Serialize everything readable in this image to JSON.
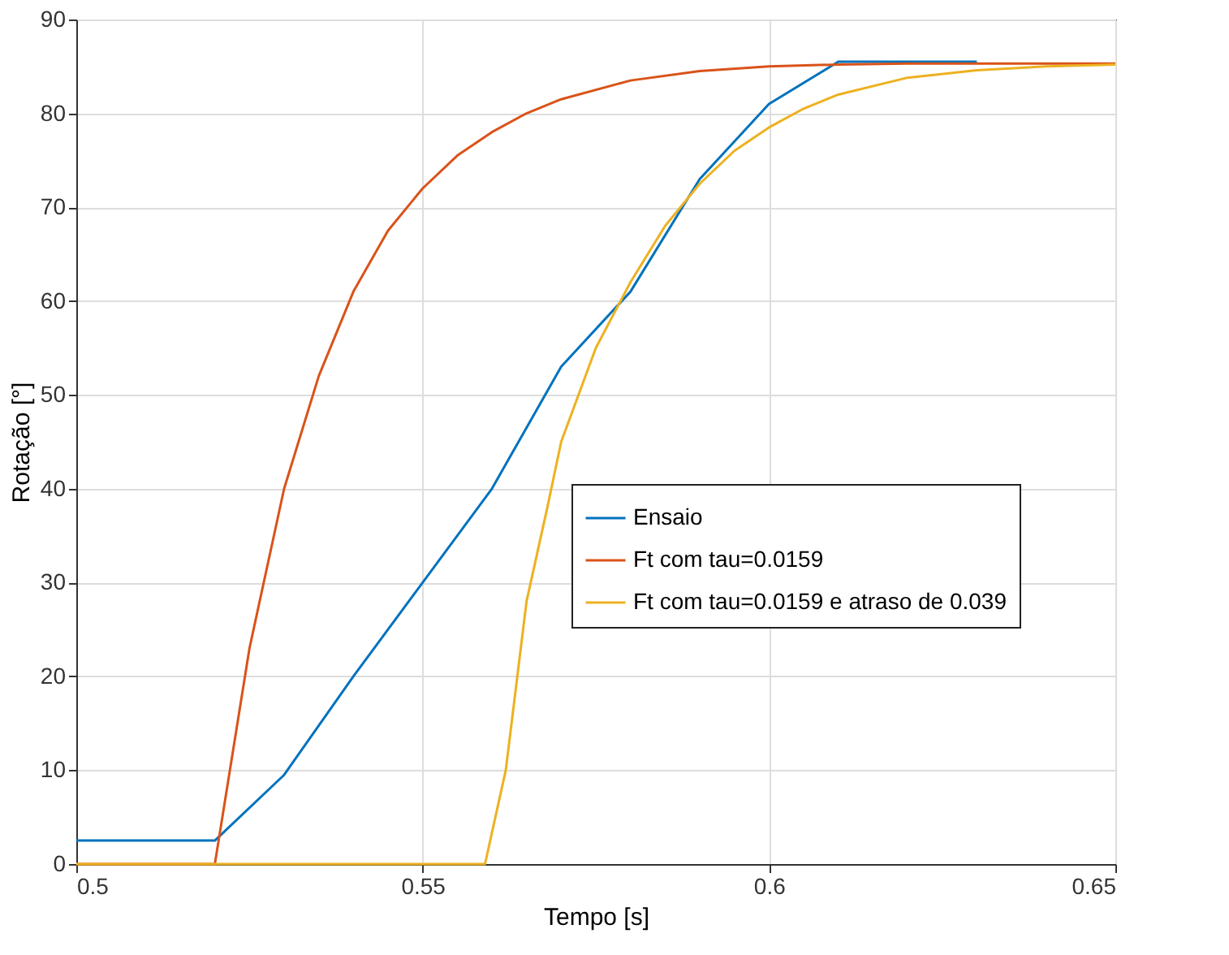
{
  "chart_data": {
    "type": "line",
    "xlabel": "Tempo [s]",
    "ylabel": "Rotação [°]",
    "xlim": [
      0.5,
      0.65
    ],
    "xticks": [
      0.5,
      0.55,
      0.6,
      0.65
    ],
    "ylim": [
      0,
      90
    ],
    "yticks": [
      0,
      10,
      20,
      30,
      40,
      50,
      60,
      70,
      80,
      90
    ],
    "grid": true,
    "legend": "right",
    "marker": "none",
    "line_style": "solid",
    "series": [
      {
        "name": "Ensaio",
        "color": "#0072bd",
        "x": [
          0.5,
          0.52,
          0.53,
          0.54,
          0.55,
          0.56,
          0.57,
          0.58,
          0.59,
          0.6,
          0.61,
          0.62,
          0.63
        ],
        "values": [
          2.5,
          2.5,
          9.5,
          20,
          30,
          40,
          53,
          61,
          73,
          81,
          85.5,
          85.5,
          85.5
        ]
      },
      {
        "name": "Ft com tau=0.0159",
        "color": "#d95319",
        "x": [
          0.5,
          0.52,
          0.525,
          0.53,
          0.535,
          0.54,
          0.545,
          0.55,
          0.555,
          0.56,
          0.565,
          0.57,
          0.58,
          0.59,
          0.6,
          0.61,
          0.62,
          0.65
        ],
        "values": [
          0,
          0,
          23,
          40,
          52,
          61,
          67.5,
          72,
          75.5,
          78,
          80,
          81.5,
          83.5,
          84.5,
          85,
          85.2,
          85.3,
          85.3
        ]
      },
      {
        "name": "Ft com tau=0.0159 e atraso de 0.039",
        "color": "#edb120",
        "x": [
          0.5,
          0.559,
          0.562,
          0.565,
          0.568,
          0.57,
          0.575,
          0.58,
          0.585,
          0.59,
          0.595,
          0.6,
          0.605,
          0.61,
          0.62,
          0.63,
          0.64,
          0.65
        ],
        "values": [
          0,
          0,
          10,
          28,
          38,
          45,
          55,
          62,
          68,
          72.5,
          76,
          78.5,
          80.5,
          82,
          83.8,
          84.6,
          85,
          85.2
        ]
      }
    ]
  }
}
